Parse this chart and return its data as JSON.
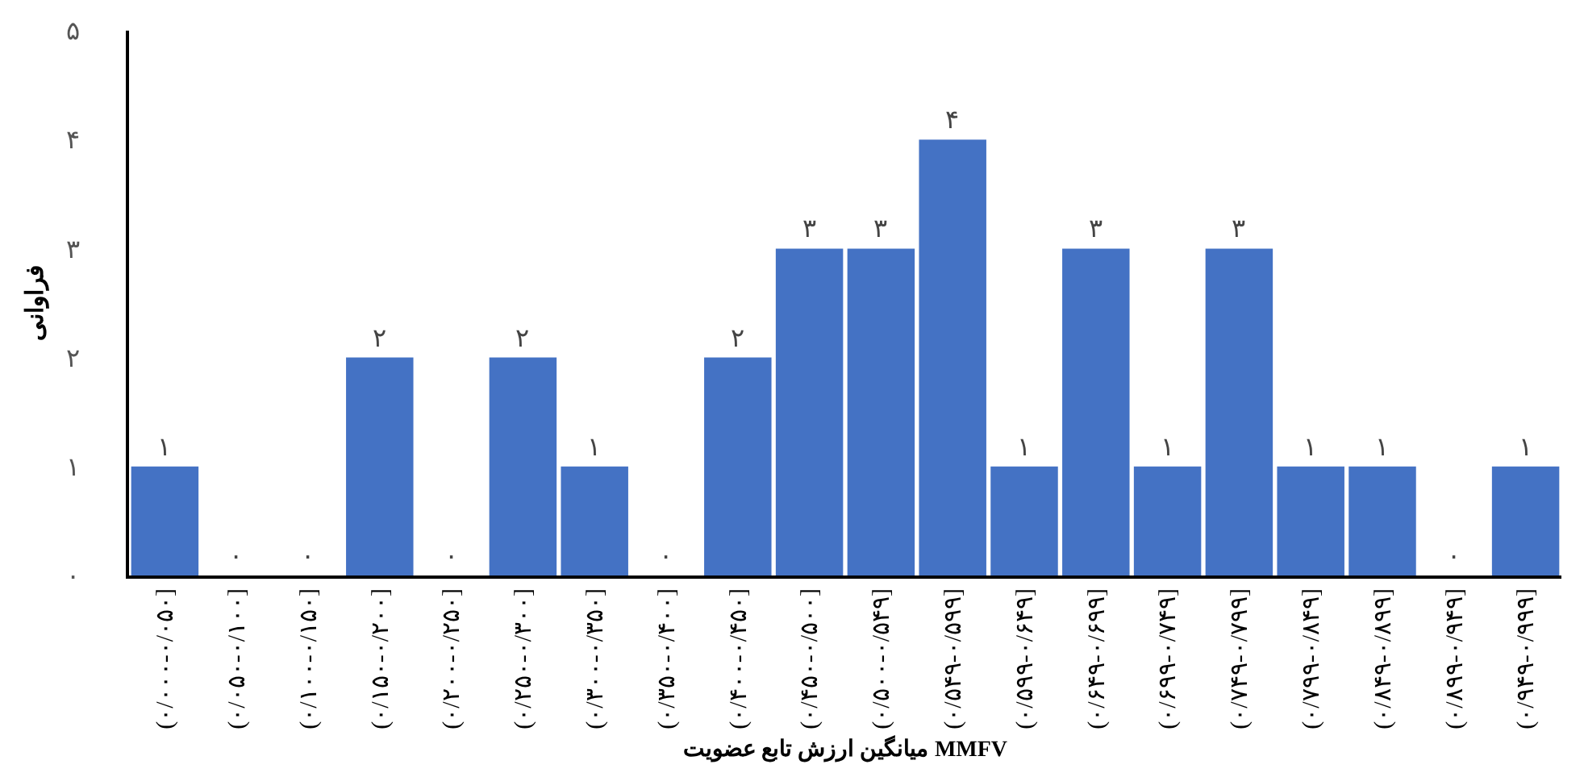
{
  "chart_data": {
    "type": "bar",
    "xlabel": "میانگین ارزش تابع عضویت MMFV",
    "ylabel": "فراوانی",
    "categories": [
      "(۰/۰۰۰-۰/۰۵۰]",
      "(۰/۰۵۰-۰/۱۰۰]",
      "(۰/۱۰۰-۰/۱۵۰]",
      "(۰/۱۵۰-۰/۲۰۰]",
      "(۰/۲۰۰-۰/۲۵۰]",
      "(۰/۲۵۰-۰/۳۰۰]",
      "(۰/۳۰۰-۰/۳۵۰]",
      "(۰/۳۵۰-۰/۴۰۰]",
      "(۰/۴۰۰-۰/۴۵۰]",
      "(۰/۴۵۰-۰/۵۰۰]",
      "(۰/۵۰۰-۰/۵۴۹]",
      "(۰/۵۴۹-۰/۵۹۹]",
      "(۰/۵۹۹-۰/۶۴۹]",
      "(۰/۶۴۹-۰/۶۹۹]",
      "(۰/۶۹۹-۰/۷۴۹]",
      "(۰/۷۴۹-۰/۷۹۹]",
      "(۰/۷۹۹-۰/۸۴۹]",
      "(۰/۸۴۹-۰/۸۹۹]",
      "(۰/۸۹۹-۰/۹۴۹]",
      "(۰/۹۴۹-۰/۹۹۹]"
    ],
    "values": [
      1,
      0,
      0,
      2,
      0,
      2,
      1,
      0,
      2,
      3,
      3,
      4,
      1,
      3,
      1,
      3,
      1,
      1,
      0,
      1
    ],
    "value_labels": [
      "۱",
      "۰",
      "۰",
      "۲",
      "۰",
      "۲",
      "۱",
      "۰",
      "۲",
      "۳",
      "۳",
      "۴",
      "۱",
      "۳",
      "۱",
      "۳",
      "۱",
      "۱",
      "۰",
      "۱"
    ],
    "color": "#4472c4",
    "ylim": [
      0,
      5
    ],
    "yticks": [
      {
        "value": 0,
        "label": "۰"
      },
      {
        "value": 1,
        "label": "۱"
      },
      {
        "value": 2,
        "label": "۲"
      },
      {
        "value": 3,
        "label": "۳"
      },
      {
        "value": 4,
        "label": "۴"
      },
      {
        "value": 5,
        "label": "۵"
      }
    ],
    "legend": false
  }
}
